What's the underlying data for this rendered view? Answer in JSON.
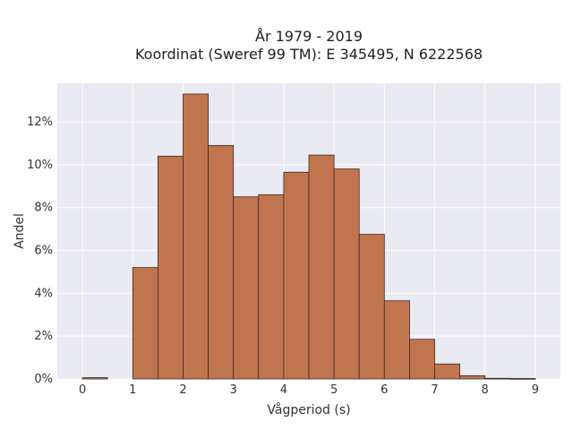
{
  "chart_data": {
    "type": "bar",
    "title_line1": "År 1979 - 2019",
    "title_line2": "Koordinat (Sweref 99 TM): E 345495, N 6222568",
    "xlabel": "Vågperiod (s)",
    "ylabel": "Andel",
    "xlim": [
      -0.5,
      9.5
    ],
    "ylim": [
      0,
      0.138
    ],
    "xticks": [
      0,
      1,
      2,
      3,
      4,
      5,
      6,
      7,
      8,
      9
    ],
    "yticks": [
      0,
      0.02,
      0.04,
      0.06,
      0.08,
      0.1,
      0.12
    ],
    "ytick_labels": [
      "0%",
      "2%",
      "4%",
      "8%",
      "10%",
      "12%"
    ],
    "ytick_labels_full": [
      "0%",
      "2%",
      "4%",
      "6%",
      "8%",
      "10%",
      "12%"
    ],
    "bin_width": 0.5,
    "bins": [
      {
        "x0": 0.0,
        "value": 0.0006
      },
      {
        "x0": 0.5,
        "value": 0.0
      },
      {
        "x0": 1.0,
        "value": 0.052
      },
      {
        "x0": 1.5,
        "value": 0.104
      },
      {
        "x0": 2.0,
        "value": 0.133
      },
      {
        "x0": 2.5,
        "value": 0.109
      },
      {
        "x0": 3.0,
        "value": 0.085
      },
      {
        "x0": 3.5,
        "value": 0.086
      },
      {
        "x0": 4.0,
        "value": 0.0965
      },
      {
        "x0": 4.5,
        "value": 0.1045
      },
      {
        "x0": 5.0,
        "value": 0.098
      },
      {
        "x0": 5.5,
        "value": 0.0675
      },
      {
        "x0": 6.0,
        "value": 0.0365
      },
      {
        "x0": 6.5,
        "value": 0.0185
      },
      {
        "x0": 7.0,
        "value": 0.007
      },
      {
        "x0": 7.5,
        "value": 0.0015
      },
      {
        "x0": 8.0,
        "value": 0.0003
      },
      {
        "x0": 8.5,
        "value": 0.0002
      }
    ],
    "grid": true,
    "colors": {
      "bar_fill": "#c1754f",
      "bar_stroke": "#3b2a20",
      "plot_bg": "#eaeaf2",
      "grid": "#ffffff"
    }
  }
}
